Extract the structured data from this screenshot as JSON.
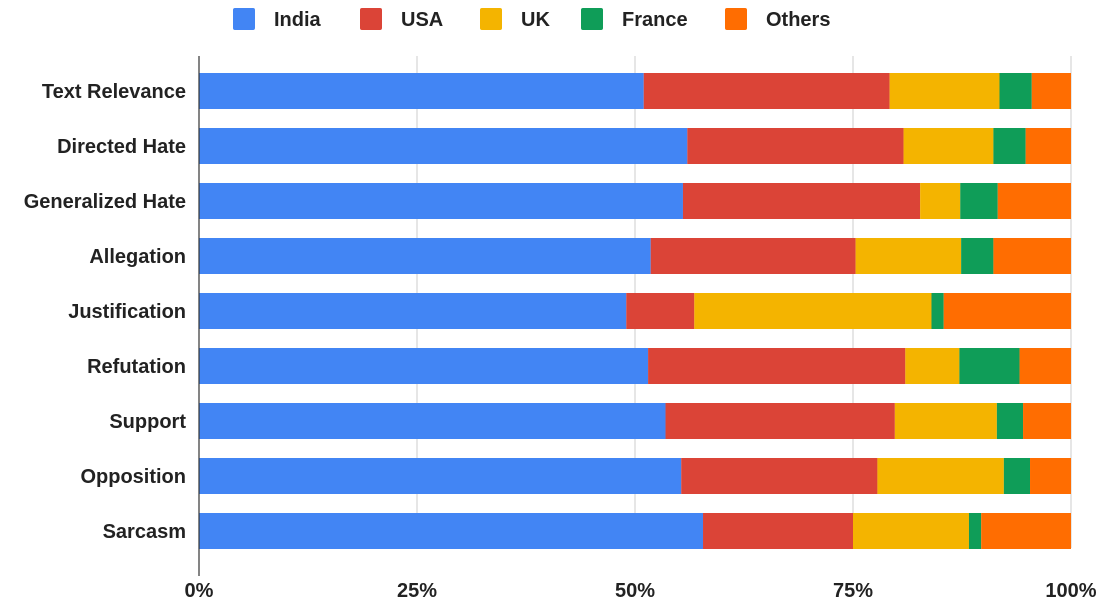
{
  "chart_data": {
    "type": "bar",
    "orientation": "horizontal",
    "stacked": "percent",
    "title": "",
    "xlabel": "",
    "ylabel": "",
    "xlim": [
      0,
      100
    ],
    "x_ticks": [
      "0%",
      "25%",
      "50%",
      "75%",
      "100%"
    ],
    "grid": true,
    "legend_position": "top",
    "categories": [
      "Text Relevance",
      "Directed Hate",
      "Generalized Hate",
      "Allegation",
      "Justification",
      "Refutation",
      "Support",
      "Opposition",
      "Sarcasm"
    ],
    "series": [
      {
        "name": "India",
        "color": "#4285f4",
        "values": [
          51.0,
          56.0,
          55.5,
          51.8,
          49.0,
          51.5,
          53.5,
          55.3,
          57.8
        ]
      },
      {
        "name": "USA",
        "color": "#db4437",
        "values": [
          28.2,
          24.8,
          27.2,
          23.5,
          7.8,
          29.5,
          26.3,
          22.5,
          17.2
        ]
      },
      {
        "name": "UK",
        "color": "#f4b400",
        "values": [
          12.6,
          10.3,
          4.6,
          12.1,
          27.2,
          6.2,
          11.7,
          14.5,
          13.3
        ]
      },
      {
        "name": "France",
        "color": "#0f9d58",
        "values": [
          3.7,
          3.7,
          4.3,
          3.7,
          1.4,
          6.9,
          3.0,
          3.0,
          1.4
        ]
      },
      {
        "name": "Others",
        "color": "#ff6d01",
        "values": [
          4.5,
          5.2,
          8.4,
          8.9,
          14.6,
          5.9,
          5.5,
          4.7,
          10.3
        ]
      }
    ]
  }
}
